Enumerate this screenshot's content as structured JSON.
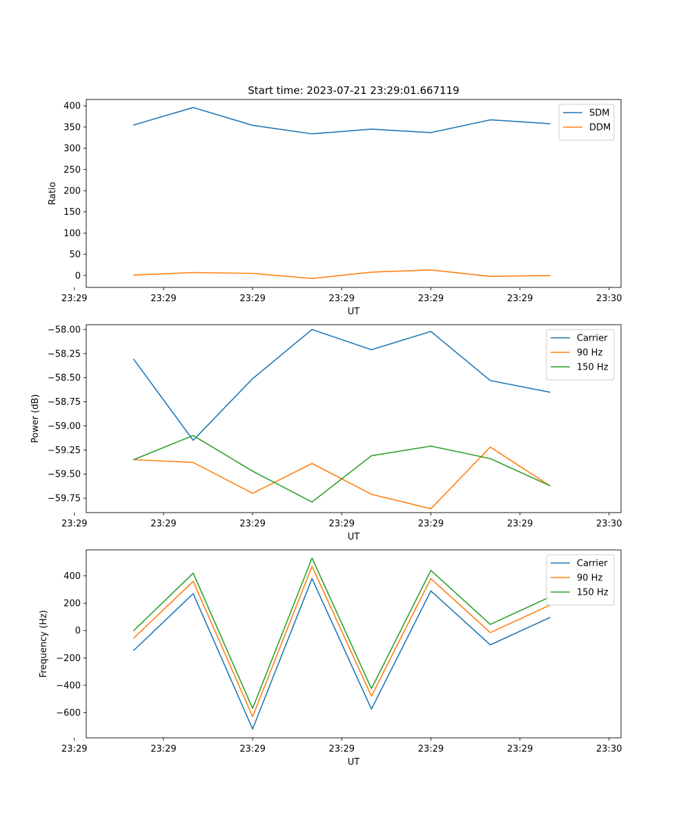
{
  "title": "Start time: 2023-07-21 23:29:01.667119",
  "colors": {
    "c0": "#1f77b4",
    "c1": "#ff7f0e",
    "c2": "#2ca02c"
  },
  "chart_data": [
    {
      "type": "line",
      "xlabel": "UT",
      "ylabel": "Ratio",
      "x_index": [
        1,
        2,
        3,
        4,
        5,
        6,
        7,
        8
      ],
      "xlim": [
        0.2,
        9.2
      ],
      "x_ticks": [
        0,
        1.5,
        3,
        4.5,
        6,
        7.5,
        9
      ],
      "x_tick_labels": [
        "23:29",
        "23:29",
        "23:29",
        "23:29",
        "23:29",
        "23:29",
        "23:30"
      ],
      "ylim": [
        -28,
        415
      ],
      "y_ticks": [
        0,
        50,
        100,
        150,
        200,
        250,
        300,
        350,
        400
      ],
      "y_tick_labels": [
        "0",
        "50",
        "100",
        "150",
        "200",
        "250",
        "300",
        "350",
        "400"
      ],
      "legend": "top-right",
      "series": [
        {
          "name": "SDM",
          "color": "#1f77b4",
          "values": [
            355,
            396,
            354,
            334,
            345,
            337,
            367,
            358
          ]
        },
        {
          "name": "DDM",
          "color": "#ff7f0e",
          "values": [
            1,
            7,
            5,
            -7,
            8,
            13,
            -2,
            0
          ]
        }
      ]
    },
    {
      "type": "line",
      "xlabel": "UT",
      "ylabel": "Power (dB)",
      "x_index": [
        1,
        2,
        3,
        4,
        5,
        6,
        7,
        8
      ],
      "xlim": [
        0.2,
        9.2
      ],
      "x_ticks": [
        0,
        1.5,
        3,
        4.5,
        6,
        7.5,
        9
      ],
      "x_tick_labels": [
        "23:29",
        "23:29",
        "23:29",
        "23:29",
        "23:29",
        "23:29",
        "23:30"
      ],
      "ylim": [
        -59.9,
        -57.95
      ],
      "y_ticks": [
        -59.75,
        -59.5,
        -59.25,
        -59.0,
        -58.75,
        -58.5,
        -58.25,
        -58.0
      ],
      "y_tick_labels": [
        "−59.75",
        "−59.50",
        "−59.25",
        "−59.00",
        "−58.75",
        "−58.50",
        "−58.25",
        "−58.00"
      ],
      "legend": "top-right",
      "series": [
        {
          "name": "Carrier",
          "color": "#1f77b4",
          "values": [
            -58.31,
            -59.15,
            -58.51,
            -58.0,
            -58.21,
            -58.02,
            -58.53,
            -58.65
          ]
        },
        {
          "name": "90 Hz",
          "color": "#ff7f0e",
          "values": [
            -59.35,
            -59.38,
            -59.7,
            -59.39,
            -59.71,
            -59.86,
            -59.22,
            -59.62
          ]
        },
        {
          "name": "150 Hz",
          "color": "#2ca02c",
          "values": [
            -59.35,
            -59.1,
            -59.47,
            -59.79,
            -59.31,
            -59.21,
            -59.34,
            -59.62
          ]
        }
      ]
    },
    {
      "type": "line",
      "xlabel": "UT",
      "ylabel": "Frequency (Hz)",
      "x_index": [
        1,
        2,
        3,
        4,
        5,
        6,
        7,
        8
      ],
      "xlim": [
        0.2,
        9.2
      ],
      "x_ticks": [
        0,
        1.5,
        3,
        4.5,
        6,
        7.5,
        9
      ],
      "x_tick_labels": [
        "23:29",
        "23:29",
        "23:29",
        "23:29",
        "23:29",
        "23:29",
        "23:30"
      ],
      "ylim": [
        -785,
        590
      ],
      "y_ticks": [
        -600,
        -400,
        -200,
        0,
        200,
        400
      ],
      "y_tick_labels": [
        "−600",
        "−400",
        "−200",
        "0",
        "200",
        "400"
      ],
      "legend": "top-right",
      "series": [
        {
          "name": "Carrier",
          "color": "#1f77b4",
          "values": [
            -145,
            270,
            -720,
            380,
            -575,
            290,
            -105,
            95
          ]
        },
        {
          "name": "90 Hz",
          "color": "#ff7f0e",
          "values": [
            -55,
            360,
            -630,
            470,
            -480,
            380,
            -15,
            185
          ]
        },
        {
          "name": "150 Hz",
          "color": "#2ca02c",
          "values": [
            0,
            420,
            -570,
            530,
            -425,
            440,
            45,
            245
          ]
        }
      ]
    }
  ]
}
